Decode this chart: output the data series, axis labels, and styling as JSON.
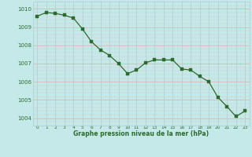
{
  "x": [
    0,
    1,
    2,
    3,
    4,
    5,
    6,
    7,
    8,
    9,
    10,
    11,
    12,
    13,
    14,
    15,
    16,
    17,
    18,
    19,
    20,
    21,
    22,
    23
  ],
  "y": [
    1009.6,
    1009.8,
    1009.75,
    1009.65,
    1009.5,
    1008.9,
    1008.2,
    1007.75,
    1007.45,
    1007.0,
    1006.45,
    1006.65,
    1007.05,
    1007.2,
    1007.2,
    1007.2,
    1006.7,
    1006.65,
    1006.3,
    1006.0,
    1005.15,
    1004.65,
    1004.1,
    1004.4
  ],
  "line_color": "#2d6a2d",
  "marker_color": "#2d6a2d",
  "bg_color": "#c5e8e8",
  "grid_color_v": "#b0d4d4",
  "grid_color_h": "#dbbcbc",
  "ylabel_ticks": [
    1004,
    1005,
    1006,
    1007,
    1008,
    1009,
    1010
  ],
  "xlabel_ticks": [
    0,
    1,
    2,
    3,
    4,
    5,
    6,
    7,
    8,
    9,
    10,
    11,
    12,
    13,
    14,
    15,
    16,
    17,
    18,
    19,
    20,
    21,
    22,
    23
  ],
  "xlabel": "Graphe pression niveau de la mer (hPa)",
  "xlabel_color": "#2d6a2d",
  "ylim": [
    1003.6,
    1010.4
  ],
  "xlim": [
    -0.5,
    23.5
  ]
}
